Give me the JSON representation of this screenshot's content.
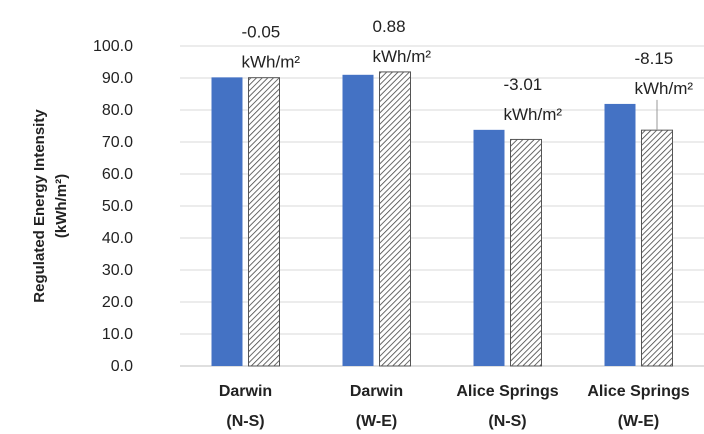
{
  "chart_data": {
    "type": "bar",
    "ylabel": [
      "Regulated Energy Intensity",
      "(kWh/m²)"
    ],
    "ylim": [
      0,
      100
    ],
    "ytick_step": 10,
    "ytick_labels": [
      "0.0",
      "10.0",
      "20.0",
      "30.0",
      "40.0",
      "50.0",
      "60.0",
      "70.0",
      "80.0",
      "90.0",
      "100.0"
    ],
    "grid": true,
    "legend": "none",
    "categories": [
      [
        "Darwin",
        "(N-S)"
      ],
      [
        "Darwin",
        "(W-E)"
      ],
      [
        "Alice Springs",
        "(N-S)"
      ],
      [
        "Alice Springs",
        "(W-E)"
      ]
    ],
    "series": [
      {
        "values": [
          90.2,
          91.0,
          73.8,
          81.9
        ],
        "color": "#4472C4",
        "pattern": "solid"
      },
      {
        "values": [
          90.1,
          91.9,
          70.8,
          73.7
        ],
        "color": "#ffffff",
        "pattern": "diagonal-hatch"
      }
    ],
    "annotations": [
      {
        "category": 0,
        "lines": [
          "-0.05",
          "kWh/m²"
        ]
      },
      {
        "category": 1,
        "lines": [
          "0.88",
          "kWh/m²"
        ]
      },
      {
        "category": 2,
        "lines": [
          "-3.01",
          "kWh/m²"
        ]
      },
      {
        "category": 3,
        "lines": [
          "-8.15",
          "kWh/m²"
        ]
      }
    ]
  }
}
